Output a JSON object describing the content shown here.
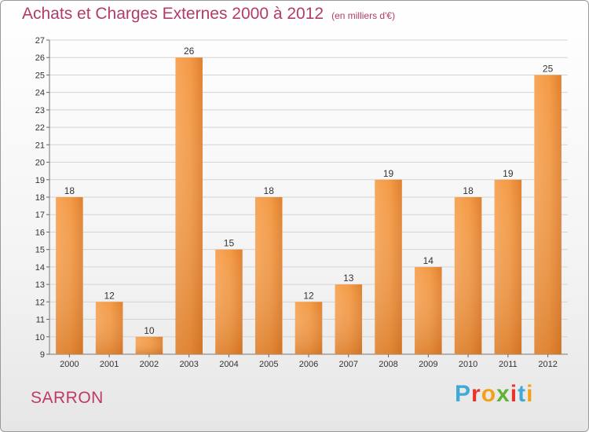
{
  "header": {
    "title": "Achats et Charges Externes 2000 à 2012",
    "subtitle": "(en milliers d'€)"
  },
  "footer": {
    "city": "SARRON",
    "brand": "Proxiti",
    "brand_colors": [
      "#3fa9d8",
      "#e8322a",
      "#f2a21a",
      "#5fb233",
      "#e8322a",
      "#3fa9d8",
      "#f2a21a"
    ]
  },
  "chart_data": {
    "type": "bar",
    "title": "Achats et Charges Externes 2000 à 2012",
    "subtitle": "(en milliers d'€)",
    "categories": [
      "2000",
      "2001",
      "2002",
      "2003",
      "2004",
      "2005",
      "2006",
      "2007",
      "2008",
      "2009",
      "2010",
      "2011",
      "2012"
    ],
    "values": [
      18,
      12,
      10,
      26,
      15,
      18,
      12,
      13,
      19,
      14,
      18,
      19,
      25
    ],
    "ylim": [
      9,
      27
    ],
    "yticks": [
      9,
      10,
      11,
      12,
      13,
      14,
      15,
      16,
      17,
      18,
      19,
      20,
      21,
      22,
      23,
      24,
      25,
      26,
      27
    ],
    "grid": true,
    "data_labels": true,
    "bar_color": "#f0923a",
    "bar_color_dark": "#d9731f"
  }
}
